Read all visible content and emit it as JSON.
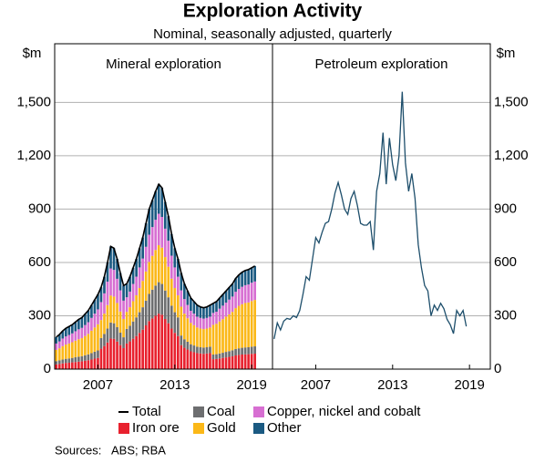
{
  "chart_data": {
    "title": "Exploration Activity",
    "subtitle": "Nominal, seasonally adjusted, quarterly",
    "y_unit": "$m",
    "sources_label": "Sources:",
    "sources": "ABS; RBA",
    "categories": [
      null,
      null,
      null,
      null,
      null,
      null,
      null,
      null,
      null,
      null,
      null,
      null,
      null,
      "2007",
      null,
      null,
      null,
      null,
      null,
      null,
      null,
      null,
      null,
      null,
      null,
      null,
      null,
      null,
      null,
      null,
      null,
      null,
      null,
      null,
      null,
      null,
      null,
      "2013",
      null,
      null,
      null,
      null,
      null,
      null,
      null,
      null,
      null,
      null,
      null,
      null,
      null,
      null,
      null,
      null,
      null,
      null,
      null,
      null,
      null,
      null,
      null,
      "2019",
      null,
      null,
      null,
      null,
      null,
      null
    ],
    "ylim": [
      0,
      1830
    ],
    "yticks": [
      0,
      300,
      600,
      900,
      {
        "value": 1200,
        "label": "1,200"
      },
      {
        "value": 1500,
        "label": "1,500"
      }
    ],
    "grid": true,
    "panels": [
      {
        "type": "bar",
        "stacked": true,
        "title": "Mineral exploration",
        "series": [
          {
            "name": "Iron ore",
            "color": "#e8212e",
            "type": "bar",
            "values": [
              27,
              29,
              32,
              35,
              36,
              38,
              40,
              42,
              44,
              47,
              50,
              54,
              59,
              63,
              115,
              130,
              150,
              172,
              170,
              155,
              135,
              118,
              144,
              156,
              171,
              186,
              204,
              222,
              246,
              270,
              285,
              300,
              312,
              306,
              282,
              258,
              228,
              204,
              186,
              135,
              120,
              110,
              100,
              95,
              90,
              88,
              86,
              88,
              90,
              56,
              57,
              60,
              63,
              66,
              69,
              72,
              77,
              80,
              82,
              83,
              84,
              86,
              87,
              null,
              null,
              null,
              null,
              null
            ]
          },
          {
            "name": "Coal",
            "color": "#6d6e70",
            "type": "bar",
            "values": [
              18,
              20,
              22,
              23,
              24,
              25,
              27,
              28,
              29,
              31,
              33,
              36,
              39,
              42,
              60,
              68,
              78,
              90,
              88,
              81,
              70,
              61,
              82,
              88,
              97,
              105,
              116,
              126,
              139,
              153,
              162,
              170,
              177,
              173,
              160,
              146,
              129,
              116,
              105,
              54,
              48,
              44,
              40,
              38,
              36,
              35,
              35,
              35,
              36,
              26,
              27,
              28,
              29,
              31,
              32,
              34,
              36,
              37,
              38,
              39,
              39,
              40,
              41,
              null,
              null,
              null,
              null,
              null
            ]
          },
          {
            "name": "Gold",
            "color": "#fbb818",
            "type": "bar",
            "values": [
              63,
              68,
              75,
              80,
              84,
              88,
              93,
              98,
              101,
              108,
              115,
              126,
              136,
              147,
              101,
              114,
              132,
              152,
              150,
              136,
              119,
              103,
              96,
              104,
              114,
              124,
              136,
              148,
              164,
              180,
              190,
              200,
              208,
              204,
              188,
              172,
              152,
              136,
              124,
              162,
              144,
              132,
              120,
              114,
              108,
              105,
              104,
              105,
              108,
              167,
              171,
              180,
              189,
              198,
              207,
              216,
              230,
              239,
              245,
              250,
              252,
              257,
              261,
              null,
              null,
              null,
              null,
              null
            ]
          },
          {
            "name": "Copper, nickel and cobalt",
            "color": "#d76fd2",
            "type": "bar",
            "values": [
              36,
              39,
              43,
              46,
              48,
              50,
              53,
              56,
              58,
              62,
              66,
              72,
              78,
              84,
              101,
              114,
              132,
              152,
              150,
              136,
              119,
              103,
              82,
              88,
              97,
              105,
              116,
              126,
              139,
              153,
              162,
              170,
              177,
              173,
              160,
              146,
              129,
              116,
              105,
              92,
              82,
              75,
              68,
              65,
              61,
              60,
              59,
              60,
              61,
              67,
              68,
              72,
              76,
              79,
              83,
              86,
              92,
              95,
              98,
              100,
              101,
              103,
              104,
              null,
              null,
              null,
              null,
              null
            ]
          },
          {
            "name": "Other",
            "color": "#1b5a82",
            "type": "bar",
            "values": [
              36,
              39,
              43,
              46,
              48,
              49,
              52,
              56,
              58,
              62,
              66,
              72,
              78,
              84,
              83,
              94,
              108,
              124,
              122,
              112,
              97,
              85,
              76,
              84,
              91,
              100,
              108,
              118,
              132,
              144,
              151,
              160,
              166,
              164,
              150,
              138,
              122,
              108,
              100,
              97,
              86,
              79,
              72,
              68,
              65,
              62,
              61,
              62,
              65,
              54,
              57,
              60,
              63,
              66,
              69,
              72,
              75,
              79,
              82,
              83,
              84,
              84,
              87,
              null,
              null,
              null,
              null,
              null
            ]
          },
          {
            "name": "Total",
            "color": "#000000",
            "type": "line",
            "values": [
              180,
              195,
              215,
              230,
              240,
              250,
              265,
              280,
              290,
              310,
              330,
              360,
              390,
              420,
              460,
              520,
              600,
              690,
              680,
              620,
              540,
              470,
              480,
              520,
              570,
              620,
              680,
              740,
              820,
              900,
              950,
              1000,
              1040,
              1020,
              940,
              860,
              760,
              680,
              620,
              540,
              480,
              440,
              400,
              380,
              360,
              350,
              345,
              350,
              360,
              370,
              380,
              400,
              420,
              440,
              460,
              480,
              510,
              530,
              545,
              555,
              560,
              570,
              580,
              null,
              null,
              null,
              null,
              null
            ]
          }
        ]
      },
      {
        "type": "line",
        "title": "Petroleum exploration",
        "series": [
          {
            "color": "#1d4e6b",
            "type": "line",
            "values": [
              170,
              260,
              220,
              270,
              285,
              280,
              300,
              290,
              330,
              420,
              520,
              500,
              620,
              740,
              710,
              770,
              820,
              830,
              900,
              990,
              1050,
              980,
              900,
              870,
              960,
              1000,
              920,
              820,
              810,
              810,
              830,
              670,
              1000,
              1100,
              1330,
              1040,
              1300,
              1150,
              1060,
              1200,
              1560,
              1160,
              1000,
              1100,
              960,
              700,
              570,
              470,
              440,
              300,
              360,
              330,
              370,
              340,
              280,
              250,
              200,
              330,
              300,
              330,
              240,
              null,
              null,
              null,
              null,
              null,
              null,
              null
            ]
          }
        ]
      }
    ]
  }
}
